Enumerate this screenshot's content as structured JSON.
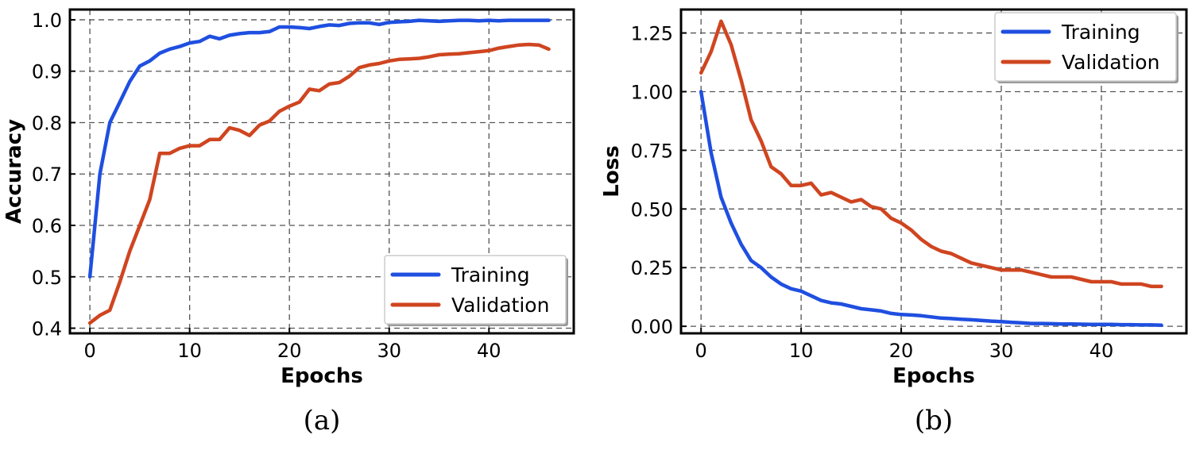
{
  "chart_data": [
    {
      "type": "line",
      "panel_label": "(a)",
      "xlabel": "Epochs",
      "ylabel": "Accuracy",
      "xlim": [
        -2,
        48.5
      ],
      "ylim": [
        0.39,
        1.02
      ],
      "xticks": [
        0,
        10,
        20,
        30,
        40
      ],
      "yticks": [
        0.4,
        0.5,
        0.6,
        0.7,
        0.8,
        0.9,
        1.0
      ],
      "ytick_labels": [
        "0.4",
        "0.5",
        "0.6",
        "0.7",
        "0.8",
        "0.9",
        "1.0"
      ],
      "grid": true,
      "legend_position": "lower-right",
      "x": [
        0,
        1,
        2,
        3,
        4,
        5,
        6,
        7,
        8,
        9,
        10,
        11,
        12,
        13,
        14,
        15,
        16,
        17,
        18,
        19,
        20,
        21,
        22,
        23,
        24,
        25,
        26,
        27,
        28,
        29,
        30,
        31,
        32,
        33,
        34,
        35,
        36,
        37,
        38,
        39,
        40,
        41,
        42,
        43,
        44,
        45,
        46
      ],
      "series": [
        {
          "name": "Training",
          "color": "#1f4fe0",
          "values": [
            0.5,
            0.7,
            0.8,
            0.84,
            0.88,
            0.91,
            0.92,
            0.935,
            0.943,
            0.948,
            0.955,
            0.958,
            0.968,
            0.963,
            0.97,
            0.973,
            0.975,
            0.975,
            0.977,
            0.986,
            0.986,
            0.985,
            0.983,
            0.987,
            0.99,
            0.989,
            0.993,
            0.994,
            0.994,
            0.991,
            0.995,
            0.996,
            0.997,
            0.999,
            0.998,
            0.997,
            0.998,
            0.999,
            0.999,
            0.998,
            0.999,
            0.998,
            0.999,
            0.999,
            0.999,
            0.999,
            0.999
          ]
        },
        {
          "name": "Validation",
          "color": "#cf4520",
          "values": [
            0.41,
            0.425,
            0.435,
            0.49,
            0.55,
            0.6,
            0.65,
            0.74,
            0.74,
            0.75,
            0.755,
            0.755,
            0.767,
            0.767,
            0.79,
            0.785,
            0.775,
            0.795,
            0.803,
            0.822,
            0.832,
            0.84,
            0.865,
            0.862,
            0.875,
            0.878,
            0.89,
            0.907,
            0.912,
            0.915,
            0.92,
            0.923,
            0.924,
            0.925,
            0.928,
            0.932,
            0.933,
            0.934,
            0.936,
            0.938,
            0.94,
            0.945,
            0.948,
            0.951,
            0.952,
            0.951,
            0.943
          ]
        }
      ]
    },
    {
      "type": "line",
      "panel_label": "(b)",
      "xlabel": "Epochs",
      "ylabel": "Loss",
      "xlim": [
        -2,
        48.5
      ],
      "ylim": [
        -0.03,
        1.35
      ],
      "xticks": [
        0,
        10,
        20,
        30,
        40
      ],
      "yticks": [
        0.0,
        0.25,
        0.5,
        0.75,
        1.0,
        1.25
      ],
      "ytick_labels": [
        "0.00",
        "0.25",
        "0.50",
        "0.75",
        "1.00",
        "1.25"
      ],
      "grid": true,
      "legend_position": "upper-right",
      "x": [
        0,
        1,
        2,
        3,
        4,
        5,
        6,
        7,
        8,
        9,
        10,
        11,
        12,
        13,
        14,
        15,
        16,
        17,
        18,
        19,
        20,
        21,
        22,
        23,
        24,
        25,
        26,
        27,
        28,
        29,
        30,
        31,
        32,
        33,
        34,
        35,
        36,
        37,
        38,
        39,
        40,
        41,
        42,
        43,
        44,
        45,
        46
      ],
      "series": [
        {
          "name": "Training",
          "color": "#1f4fe0",
          "values": [
            1.0,
            0.74,
            0.55,
            0.44,
            0.35,
            0.28,
            0.25,
            0.21,
            0.18,
            0.16,
            0.15,
            0.13,
            0.11,
            0.1,
            0.095,
            0.085,
            0.075,
            0.07,
            0.065,
            0.055,
            0.05,
            0.048,
            0.045,
            0.04,
            0.035,
            0.033,
            0.03,
            0.028,
            0.025,
            0.022,
            0.02,
            0.017,
            0.015,
            0.012,
            0.012,
            0.011,
            0.01,
            0.01,
            0.009,
            0.008,
            0.008,
            0.008,
            0.007,
            0.007,
            0.006,
            0.006,
            0.005
          ]
        },
        {
          "name": "Validation",
          "color": "#cf4520",
          "values": [
            1.08,
            1.17,
            1.3,
            1.2,
            1.05,
            0.88,
            0.79,
            0.68,
            0.65,
            0.6,
            0.6,
            0.61,
            0.56,
            0.57,
            0.55,
            0.53,
            0.54,
            0.51,
            0.5,
            0.46,
            0.44,
            0.41,
            0.37,
            0.34,
            0.32,
            0.31,
            0.29,
            0.27,
            0.26,
            0.25,
            0.24,
            0.24,
            0.24,
            0.23,
            0.22,
            0.21,
            0.21,
            0.21,
            0.2,
            0.19,
            0.19,
            0.19,
            0.18,
            0.18,
            0.18,
            0.17,
            0.17
          ]
        }
      ]
    }
  ]
}
